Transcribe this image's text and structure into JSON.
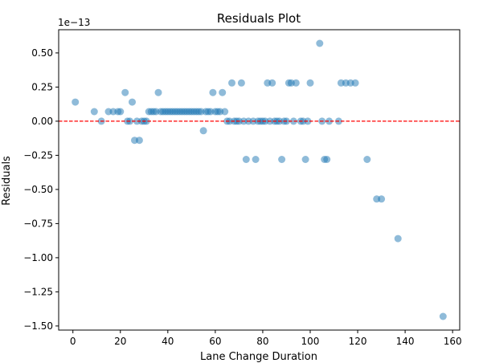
{
  "chart_data": {
    "type": "scatter",
    "title": "Residuals Plot",
    "xlabel": "Lane Change Duration",
    "ylabel": "Residuals",
    "offset_text": "1e−13",
    "xlim": [
      -6,
      163
    ],
    "ylim": [
      -1.53,
      0.67
    ],
    "xticks": [
      0,
      20,
      40,
      60,
      80,
      100,
      120,
      140,
      160
    ],
    "yticks": [
      0.5,
      0.25,
      0.0,
      -0.25,
      -0.5,
      -0.75,
      -1.0,
      -1.25,
      -1.5
    ],
    "ytick_labels": [
      "0.50",
      "0.25",
      "0.00",
      "−0.25",
      "−0.50",
      "−0.75",
      "−1.00",
      "−1.25",
      "−1.50"
    ],
    "reference_line": {
      "y": 0,
      "color": "#ff0000",
      "style": "dashed"
    },
    "point_color": "#1f77b4",
    "grid": false,
    "points": [
      [
        1,
        0.14
      ],
      [
        9,
        0.07
      ],
      [
        12,
        0.0
      ],
      [
        15,
        0.07
      ],
      [
        17,
        0.07
      ],
      [
        19,
        0.07
      ],
      [
        20,
        0.07
      ],
      [
        22,
        0.21
      ],
      [
        23,
        0.0
      ],
      [
        24,
        0.0
      ],
      [
        25,
        0.14
      ],
      [
        26,
        -0.14
      ],
      [
        27,
        0.0
      ],
      [
        28,
        -0.14
      ],
      [
        29,
        0.0
      ],
      [
        30,
        0.0
      ],
      [
        31,
        0.0
      ],
      [
        32,
        0.07
      ],
      [
        33,
        0.07
      ],
      [
        34,
        0.07
      ],
      [
        35,
        0.07
      ],
      [
        36,
        0.21
      ],
      [
        37,
        0.07
      ],
      [
        38,
        0.07
      ],
      [
        39,
        0.07
      ],
      [
        40,
        0.07
      ],
      [
        41,
        0.07
      ],
      [
        42,
        0.07
      ],
      [
        43,
        0.07
      ],
      [
        44,
        0.07
      ],
      [
        45,
        0.07
      ],
      [
        46,
        0.07
      ],
      [
        47,
        0.07
      ],
      [
        48,
        0.07
      ],
      [
        49,
        0.07
      ],
      [
        50,
        0.07
      ],
      [
        51,
        0.07
      ],
      [
        52,
        0.07
      ],
      [
        53,
        0.07
      ],
      [
        54,
        0.07
      ],
      [
        55,
        -0.07
      ],
      [
        56,
        0.07
      ],
      [
        57,
        0.07
      ],
      [
        58,
        0.07
      ],
      [
        59,
        0.21
      ],
      [
        60,
        0.07
      ],
      [
        61,
        0.07
      ],
      [
        62,
        0.07
      ],
      [
        63,
        0.21
      ],
      [
        64,
        0.07
      ],
      [
        65,
        0.0
      ],
      [
        66,
        0.0
      ],
      [
        67,
        0.28
      ],
      [
        68,
        0.0
      ],
      [
        69,
        0.0
      ],
      [
        70,
        0.0
      ],
      [
        71,
        0.28
      ],
      [
        72,
        0.0
      ],
      [
        73,
        -0.28
      ],
      [
        74,
        0.0
      ],
      [
        76,
        0.0
      ],
      [
        77,
        -0.28
      ],
      [
        78,
        0.0
      ],
      [
        79,
        0.0
      ],
      [
        80,
        0.0
      ],
      [
        81,
        0.0
      ],
      [
        82,
        0.28
      ],
      [
        83,
        0.0
      ],
      [
        84,
        0.28
      ],
      [
        85,
        0.0
      ],
      [
        86,
        0.0
      ],
      [
        87,
        0.0
      ],
      [
        88,
        -0.28
      ],
      [
        89,
        0.0
      ],
      [
        90,
        0.0
      ],
      [
        91,
        0.28
      ],
      [
        92,
        0.28
      ],
      [
        93,
        0.0
      ],
      [
        94,
        0.28
      ],
      [
        96,
        0.0
      ],
      [
        97,
        0.0
      ],
      [
        98,
        -0.28
      ],
      [
        99,
        0.0
      ],
      [
        100,
        0.28
      ],
      [
        104,
        0.57
      ],
      [
        105,
        0.0
      ],
      [
        106,
        -0.28
      ],
      [
        107,
        -0.28
      ],
      [
        108,
        0.0
      ],
      [
        112,
        0.0
      ],
      [
        113,
        0.28
      ],
      [
        115,
        0.28
      ],
      [
        117,
        0.28
      ],
      [
        119,
        0.28
      ],
      [
        124,
        -0.28
      ],
      [
        128,
        -0.57
      ],
      [
        130,
        -0.57
      ],
      [
        137,
        -0.86
      ],
      [
        156,
        -1.43
      ]
    ]
  }
}
